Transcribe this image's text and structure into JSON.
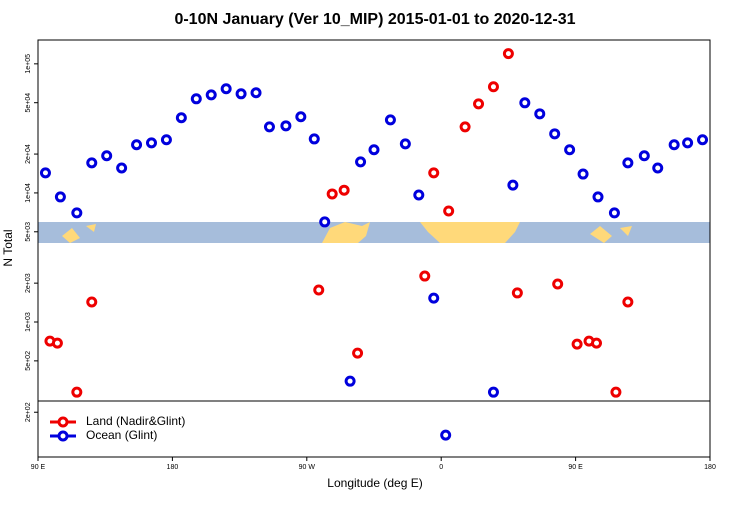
{
  "chart_data": {
    "type": "scatter",
    "title": "0-10N January (Ver 10_MIP)   2015-01-01 to 2020-12-31",
    "x_label": "Longitude (deg E)",
    "y_label": "N Total",
    "log_y": true,
    "xlim": [
      90,
      540
    ],
    "ylim": [
      90,
      153000
    ],
    "xticks": [
      {
        "value": 90,
        "label": "90 E"
      },
      180,
      {
        "value": 270,
        "label": "90 W"
      },
      {
        "value": 360,
        "label": "0"
      },
      {
        "value": 450,
        "label": "90 E"
      },
      {
        "value": 540,
        "label": "180"
      }
    ],
    "yticks": [
      {
        "value": 200,
        "label": "2e+02"
      },
      {
        "value": 500,
        "label": "5e+02"
      },
      {
        "value": 1000,
        "label": "1e+03"
      },
      {
        "value": 2000,
        "label": "2e+03"
      },
      {
        "value": 5000,
        "label": "5e+03"
      },
      {
        "value": 10000,
        "label": "1e+04"
      },
      {
        "value": 20000,
        "label": "2e+04"
      },
      {
        "value": 50000,
        "label": "5e+04"
      },
      {
        "value": 100000,
        "label": "1e+05"
      }
    ],
    "legend": "bottom-left",
    "series": [
      {
        "name": "Land (Nadir&Glint)",
        "color": "#ee0000",
        "x": [
          98,
          103,
          116,
          126,
          278,
          287,
          295,
          304,
          349,
          355,
          365,
          376,
          385,
          395,
          405,
          411,
          438,
          451,
          459,
          464,
          477,
          485
        ],
        "values": [
          711,
          686,
          286,
          1430,
          1770,
          9820,
          10500,
          574,
          2270,
          14300,
          7250,
          32500,
          49000,
          66400,
          120000,
          1680,
          1970,
          674,
          711,
          686,
          286,
          1430
        ]
      },
      {
        "name": "Ocean (Glint)",
        "color": "#0000dd",
        "x": [
          95,
          105,
          116,
          126,
          136,
          146,
          156,
          166,
          176,
          186,
          196,
          206,
          216,
          226,
          236,
          245,
          256,
          266,
          275,
          282,
          299,
          306,
          315,
          326,
          336,
          345,
          355,
          363,
          395,
          408,
          416,
          426,
          436,
          446,
          455,
          465,
          476,
          485,
          496,
          505,
          516,
          525,
          535
        ],
        "values": [
          14300,
          9310,
          7000,
          17100,
          19400,
          15600,
          23600,
          24400,
          25800,
          38200,
          53600,
          57500,
          64100,
          58600,
          59700,
          32500,
          33100,
          38900,
          26200,
          5960,
          348,
          17400,
          21600,
          36800,
          24000,
          9640,
          1530,
          133,
          286,
          11500,
          49900,
          41000,
          28700,
          21600,
          14000,
          9310,
          7000,
          17100,
          19400,
          15600,
          23600,
          24400,
          25800
        ]
      }
    ]
  }
}
